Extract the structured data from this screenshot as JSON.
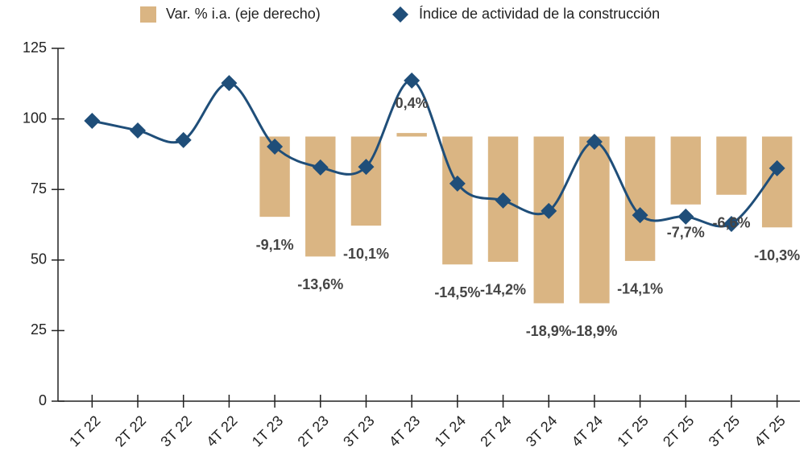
{
  "chart_data": {
    "type": "bar-line",
    "categories": [
      "1T 22",
      "2T 22",
      "3T 22",
      "4T 22",
      "1T 23",
      "2T 23",
      "3T 23",
      "4T 23",
      "1T 24",
      "2T 24",
      "3T 24",
      "4T 24",
      "1T 25",
      "2T 25",
      "3T 25",
      "4T 25"
    ],
    "series": [
      {
        "name": "Var. % i.a. (eje derecho)",
        "type": "bar",
        "axis": "y2",
        "color": "#dab583",
        "values": [
          null,
          null,
          null,
          null,
          -9.1,
          -13.6,
          -10.1,
          0.4,
          -14.5,
          -14.2,
          -18.9,
          -18.9,
          -14.1,
          -7.7,
          -6.6,
          -10.3
        ],
        "value_labels": [
          null,
          null,
          null,
          null,
          "-9,1%",
          "-13,6%",
          "-10,1%",
          "0,4%",
          "-14,5%",
          "-14,2%",
          "-18,9%",
          "-18,9%",
          "-14,1%",
          "-7,7%",
          "-6,6%",
          "-10,3%"
        ]
      },
      {
        "name": "Índice de actividad de la construcción",
        "type": "line",
        "color": "#1f4e79",
        "values": [
          99.3,
          95.9,
          92.5,
          112.7,
          90.2,
          82.8,
          83.0,
          113.6,
          77.1,
          71.1,
          67.4,
          91.9,
          65.9,
          65.4,
          62.8,
          82.5
        ]
      }
    ],
    "ylim": [
      0,
      125
    ],
    "yticks": [
      0,
      25,
      50,
      75,
      100,
      125
    ],
    "y2lim": [
      -30,
      10
    ],
    "legend": "top"
  }
}
